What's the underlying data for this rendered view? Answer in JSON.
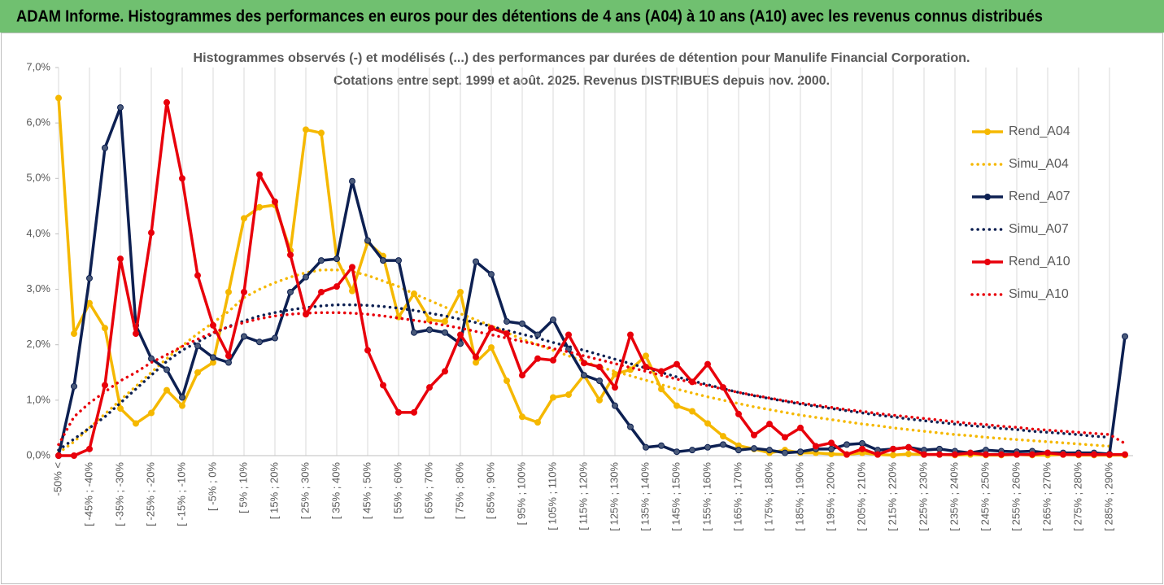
{
  "header": "ADAM Informe. Histogrammes des performances en euros pour des détentions de 4 ans (A04) à 10 ans (A10) avec les revenus connus distribués",
  "chart_data": {
    "type": "line",
    "title": "Histogrammes observés (-) et modélisés (...) des performances par durées de détention pour Manulife Financial Corporation.",
    "subtitle": "Cotations entre sept. 1999 et août. 2025. Revenus DISTRIBUES depuis nov. 2000.",
    "categories": [
      "-50% <",
      null,
      "[ -45% ; -40%",
      null,
      "[ -35% ; -30%",
      null,
      "[ -25% ; -20%",
      null,
      "[ -15% ; -10%",
      null,
      "[ -5% ; 0%",
      null,
      "[ 5% ; 10%",
      null,
      "[ 15% ; 20%",
      null,
      "[ 25% ; 30%",
      null,
      "[ 35% ; 40%",
      null,
      "[ 45% ; 50%",
      null,
      "[ 55% ; 60%",
      null,
      "[ 65% ; 70%",
      null,
      "[ 75% ; 80%",
      null,
      "[ 85% ; 90%",
      null,
      "[ 95% ; 100%",
      null,
      "[ 105% ; 110%",
      null,
      "[ 115% ; 120%",
      null,
      "[ 125% ; 130%",
      null,
      "[ 135% ; 140%",
      null,
      "[ 145% ; 150%",
      null,
      "[ 155% ; 160%",
      null,
      "[ 165% ; 170%",
      null,
      "[ 175% ; 180%",
      null,
      "[ 185% ; 190%",
      null,
      "[ 195% ; 200%",
      null,
      "[ 205% ; 210%",
      null,
      "[ 215% ; 220%",
      null,
      "[ 225% ; 230%",
      null,
      "[ 235% ; 240%",
      null,
      "[ 245% ; 250%",
      null,
      "[ 255% ; 260%",
      null,
      "[ 265% ; 270%",
      null,
      "[ 275% ; 280%",
      null,
      "[ 285% ; 290%",
      null
    ],
    "series": [
      {
        "name": "Rend_A04",
        "color": "#f5b800",
        "style": "markers",
        "values": [
          6.45,
          2.2,
          2.75,
          2.3,
          0.85,
          0.58,
          0.77,
          1.18,
          0.9,
          1.5,
          1.68,
          2.95,
          4.28,
          4.48,
          4.52,
          3.7,
          5.88,
          5.82,
          3.55,
          2.97,
          3.85,
          3.6,
          2.5,
          2.92,
          2.45,
          2.42,
          2.95,
          1.68,
          1.95,
          1.35,
          0.7,
          0.6,
          1.05,
          1.1,
          1.45,
          1.0,
          1.47,
          1.55,
          1.8,
          1.2,
          0.9,
          0.8,
          0.58,
          0.35,
          0.18,
          0.12,
          0.05,
          0.1,
          0.05,
          0.05,
          0.03,
          0.02,
          0.05,
          0.02,
          0.01,
          0.03,
          0.02,
          0.02,
          0.01,
          0.02,
          0.01,
          0.01,
          0.02,
          0.01,
          0.01,
          0.02,
          0.01,
          0.01,
          0.01,
          0.01
        ]
      },
      {
        "name": "Simu_A04",
        "color": "#f5b800",
        "style": "dotted",
        "values": [
          0.05,
          0.25,
          0.5,
          0.75,
          1.0,
          1.25,
          1.5,
          1.75,
          1.98,
          2.2,
          2.4,
          2.6,
          2.85,
          3.0,
          3.12,
          3.22,
          3.3,
          3.35,
          3.35,
          3.32,
          3.25,
          3.15,
          3.05,
          2.92,
          2.8,
          2.68,
          2.56,
          2.45,
          2.34,
          2.22,
          2.1,
          2.0,
          1.9,
          1.8,
          1.7,
          1.6,
          1.52,
          1.44,
          1.36,
          1.28,
          1.2,
          1.13,
          1.06,
          1.0,
          0.94,
          0.88,
          0.83,
          0.78,
          0.73,
          0.69,
          0.65,
          0.61,
          0.57,
          0.54,
          0.5,
          0.47,
          0.44,
          0.41,
          0.38,
          0.36,
          0.33,
          0.31,
          0.29,
          0.27,
          0.25,
          0.23,
          0.21,
          0.19,
          0.17,
          null
        ]
      },
      {
        "name": "Rend_A07",
        "color": "#0d2052",
        "style": "markers",
        "values": [
          0.0,
          1.25,
          3.2,
          5.55,
          6.28,
          2.35,
          1.75,
          1.55,
          1.05,
          1.98,
          1.77,
          1.68,
          2.15,
          2.05,
          2.12,
          2.95,
          3.22,
          3.52,
          3.55,
          4.95,
          3.88,
          3.52,
          3.52,
          2.22,
          2.27,
          2.22,
          2.02,
          3.5,
          3.27,
          2.42,
          2.38,
          2.18,
          2.45,
          1.92,
          1.45,
          1.35,
          0.9,
          0.52,
          0.15,
          0.18,
          0.07,
          0.1,
          0.15,
          0.2,
          0.1,
          0.13,
          0.1,
          0.05,
          0.07,
          0.12,
          0.12,
          0.2,
          0.22,
          0.1,
          0.12,
          0.15,
          0.1,
          0.12,
          0.08,
          0.05,
          0.1,
          0.08,
          0.07,
          0.08,
          0.05,
          0.05,
          0.05,
          0.05,
          0.03,
          2.15
        ]
      },
      {
        "name": "Simu_A07",
        "color": "#0d2052",
        "style": "dotted",
        "values": [
          0.1,
          0.3,
          0.5,
          0.7,
          0.95,
          1.2,
          1.45,
          1.7,
          1.9,
          2.05,
          2.2,
          2.33,
          2.43,
          2.52,
          2.58,
          2.63,
          2.67,
          2.7,
          2.72,
          2.72,
          2.71,
          2.69,
          2.66,
          2.62,
          2.57,
          2.52,
          2.46,
          2.4,
          2.33,
          2.26,
          2.19,
          2.12,
          2.04,
          1.97,
          1.9,
          1.82,
          1.74,
          1.66,
          1.58,
          1.5,
          1.42,
          1.35,
          1.28,
          1.21,
          1.14,
          1.08,
          1.03,
          0.98,
          0.93,
          0.89,
          0.85,
          0.81,
          0.77,
          0.73,
          0.7,
          0.66,
          0.63,
          0.6,
          0.57,
          0.54,
          0.52,
          0.49,
          0.47,
          0.44,
          0.42,
          0.4,
          0.38,
          0.35,
          0.33,
          null
        ]
      },
      {
        "name": "Rend_A10",
        "color": "#e8000b",
        "style": "markers",
        "values": [
          0,
          0,
          0.12,
          1.27,
          3.55,
          2.2,
          4.02,
          6.37,
          5.0,
          3.25,
          2.35,
          1.8,
          2.95,
          5.07,
          4.58,
          3.62,
          2.55,
          2.95,
          3.05,
          3.4,
          1.9,
          1.27,
          0.78,
          0.78,
          1.23,
          1.52,
          2.18,
          1.78,
          2.3,
          2.2,
          1.45,
          1.75,
          1.72,
          2.18,
          1.67,
          1.6,
          1.23,
          2.18,
          1.6,
          1.52,
          1.65,
          1.33,
          1.65,
          1.23,
          0.75,
          0.37,
          0.57,
          0.33,
          0.5,
          0.17,
          0.23,
          0.02,
          0.12,
          0.02,
          0.12,
          0.15,
          0.02,
          0.02,
          0.02,
          0.05,
          0.02,
          0.02,
          0.02,
          0.02,
          0.05,
          0.02,
          0.02,
          0.02,
          0.02,
          0.02
        ]
      },
      {
        "name": "Simu_A10",
        "color": "#e8000b",
        "style": "dotted",
        "values": [
          0.2,
          0.7,
          0.95,
          1.15,
          1.35,
          1.5,
          1.68,
          1.82,
          1.97,
          2.1,
          2.22,
          2.32,
          2.4,
          2.47,
          2.52,
          2.55,
          2.57,
          2.58,
          2.58,
          2.57,
          2.55,
          2.52,
          2.48,
          2.44,
          2.4,
          2.35,
          2.3,
          2.24,
          2.18,
          2.12,
          2.06,
          2.0,
          1.93,
          1.87,
          1.8,
          1.73,
          1.66,
          1.59,
          1.52,
          1.45,
          1.38,
          1.32,
          1.26,
          1.2,
          1.14,
          1.09,
          1.04,
          0.99,
          0.95,
          0.91,
          0.87,
          0.83,
          0.8,
          0.76,
          0.73,
          0.7,
          0.67,
          0.64,
          0.61,
          0.58,
          0.56,
          0.53,
          0.51,
          0.48,
          0.46,
          0.44,
          0.42,
          0.4,
          0.38,
          0.22
        ]
      }
    ],
    "ylim": [
      0,
      7
    ],
    "yticks": [
      {
        "value": 0,
        "label": "0,0%"
      },
      {
        "value": 1,
        "label": "1,0%"
      },
      {
        "value": 2,
        "label": "2,0%"
      },
      {
        "value": 3,
        "label": "3,0%"
      },
      {
        "value": 4,
        "label": "4,0%"
      },
      {
        "value": 5,
        "label": "5,0%"
      },
      {
        "value": 6,
        "label": "6,0%"
      },
      {
        "value": 7,
        "label": "7,0%"
      }
    ],
    "grid": true,
    "legend": "right"
  }
}
